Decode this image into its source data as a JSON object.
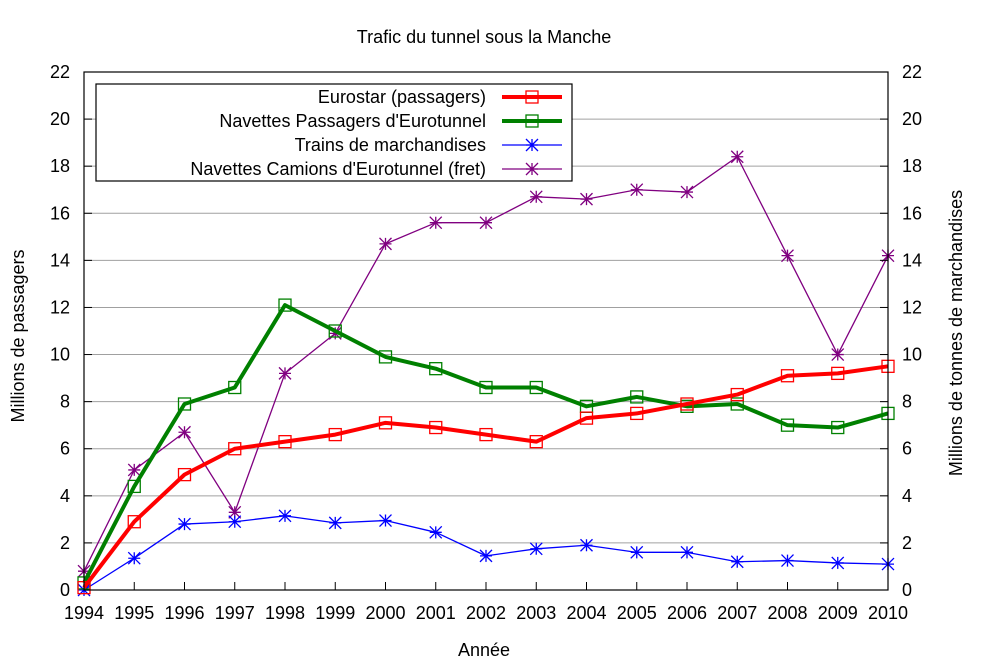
{
  "chart_data": {
    "type": "line",
    "title": "Trafic du tunnel sous la Manche",
    "xlabel": "Année",
    "ylabel_left": "Millions de passagers",
    "ylabel_right": "Millions de tonnes de marchandises",
    "x": [
      1994,
      1995,
      1996,
      1997,
      1998,
      1999,
      2000,
      2001,
      2002,
      2003,
      2004,
      2005,
      2006,
      2007,
      2008,
      2009,
      2010
    ],
    "xlim": [
      1994,
      2010
    ],
    "ylim_left": [
      0,
      22
    ],
    "ylim_right": [
      0,
      22
    ],
    "yticks": [
      0,
      2,
      4,
      6,
      8,
      10,
      12,
      14,
      16,
      18,
      20,
      22
    ],
    "grid": "horizontal",
    "legend_position": "top-left",
    "series": [
      {
        "name": "Eurostar (passagers)",
        "axis": "left",
        "color": "#ff0000",
        "marker": "square",
        "values": [
          0.1,
          2.9,
          4.9,
          6.0,
          6.3,
          6.6,
          7.1,
          6.9,
          6.6,
          6.3,
          7.3,
          7.5,
          7.9,
          8.3,
          9.1,
          9.2,
          9.5
        ]
      },
      {
        "name": "Navettes Passagers d'Eurotunnel",
        "axis": "left",
        "color": "#008000",
        "marker": "square",
        "values": [
          0.3,
          4.4,
          7.9,
          8.6,
          12.1,
          11.0,
          9.9,
          9.4,
          8.6,
          8.6,
          7.8,
          8.2,
          7.8,
          7.9,
          7.0,
          6.9,
          7.5
        ]
      },
      {
        "name": "Trains de marchandises",
        "axis": "right",
        "color": "#0000ff",
        "marker": "star",
        "values": [
          0.0,
          1.35,
          2.8,
          2.9,
          3.15,
          2.85,
          2.95,
          2.45,
          1.45,
          1.75,
          1.9,
          1.6,
          1.6,
          1.2,
          1.25,
          1.15,
          1.1
        ]
      },
      {
        "name": "Navettes Camions d'Eurotunnel (fret)",
        "axis": "right",
        "color": "#800080",
        "marker": "star",
        "values": [
          0.8,
          5.1,
          6.7,
          3.3,
          9.2,
          10.9,
          14.7,
          15.6,
          15.6,
          16.7,
          16.6,
          17.0,
          16.9,
          18.4,
          14.2,
          10.0,
          14.2
        ]
      }
    ]
  }
}
